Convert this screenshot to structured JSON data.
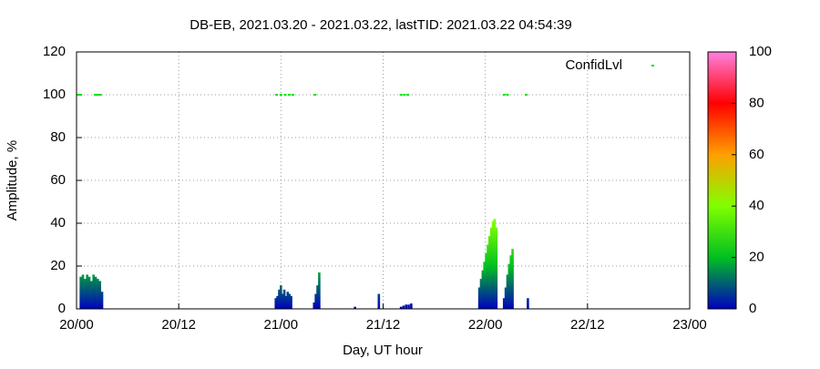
{
  "chart_data": {
    "type": "impulse",
    "title": "DB-EB, 2021.03.20 - 2021.03.22, lastTID: 2021.03.22 04:54:39",
    "x_label": "Day, UT hour",
    "y_label": "Amplitude, %",
    "xlim": [
      0,
      72
    ],
    "xticks": [
      {
        "value": 0,
        "label": "20/00"
      },
      {
        "value": 12,
        "label": "20/12"
      },
      {
        "value": 24,
        "label": "21/00"
      },
      {
        "value": 36,
        "label": "21/12"
      },
      {
        "value": 48,
        "label": "22/00"
      },
      {
        "value": 60,
        "label": "22/12"
      },
      {
        "value": 72,
        "label": "23/00"
      }
    ],
    "ylim": [
      0,
      120
    ],
    "yticks": [
      0,
      20,
      40,
      60,
      80,
      100,
      120
    ],
    "cblim": [
      0,
      100
    ],
    "cbticks": [
      0,
      20,
      40,
      60,
      80,
      100
    ],
    "palette": [
      "#0000c0",
      "#00c020",
      "#80ff00",
      "#ffa000",
      "#ff0000",
      "#ff80e0"
    ],
    "grid": true,
    "legend": "top right",
    "series": [
      {
        "name": "Amplitude",
        "x": [
          0.5,
          0.75,
          1.0,
          1.25,
          1.5,
          1.75,
          2.0,
          2.25,
          2.5,
          2.75,
          3.0,
          23.4,
          23.6,
          23.8,
          24.0,
          24.2,
          24.4,
          24.6,
          24.8,
          25.0,
          25.2,
          27.9,
          28.1,
          28.3,
          28.5,
          32.7,
          35.5,
          38.1,
          38.4,
          38.7,
          39.0,
          39.3,
          47.3,
          47.5,
          47.7,
          47.9,
          48.1,
          48.3,
          48.5,
          48.7,
          48.9,
          49.1,
          49.3,
          50.2,
          50.4,
          50.6,
          50.8,
          51.0,
          51.2,
          53.0
        ],
        "values": [
          15,
          16,
          14,
          16,
          15,
          13,
          16,
          15,
          14,
          13,
          8,
          5,
          6,
          9,
          11,
          7,
          9,
          6,
          8,
          7,
          6,
          3,
          7,
          11,
          17,
          1,
          7,
          1,
          1.5,
          2,
          2,
          2.5,
          10,
          14,
          18,
          22,
          26,
          30,
          34,
          38,
          41,
          42,
          38,
          5,
          10,
          16,
          21,
          25,
          28,
          5
        ]
      },
      {
        "name": "ConfidLvl",
        "color": "#00e000",
        "x": [
          0.2,
          0.5,
          2.2,
          2.5,
          2.8,
          23.5,
          24.0,
          24.5,
          25.0,
          25.4,
          28.0,
          38.1,
          38.5,
          38.9,
          50.2,
          50.6,
          52.8
        ],
        "values": [
          100,
          100,
          100,
          100,
          100,
          100,
          100,
          100,
          100,
          100,
          100,
          100,
          100,
          100,
          100,
          100,
          100
        ]
      }
    ]
  }
}
